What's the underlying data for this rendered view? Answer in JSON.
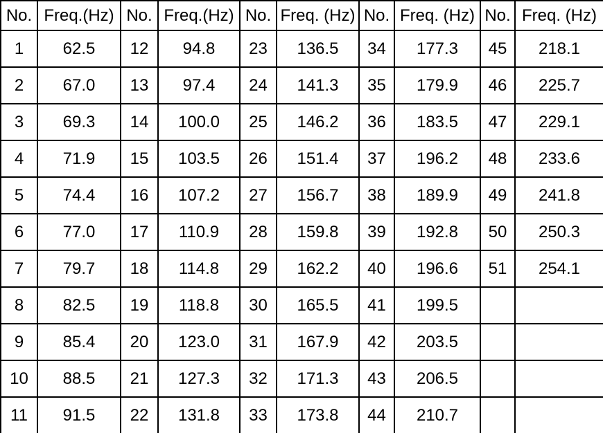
{
  "table": {
    "headers": [
      "No.",
      "Freq.(Hz)",
      "No.",
      "Freq.(Hz)",
      "No.",
      "Freq. (Hz)",
      "No.",
      "Freq. (Hz)",
      "No.",
      "Freq. (Hz)"
    ],
    "rows": [
      [
        "1",
        "62.5",
        "12",
        "94.8",
        "23",
        "136.5",
        "34",
        "177.3",
        "45",
        "218.1"
      ],
      [
        "2",
        "67.0",
        "13",
        "97.4",
        "24",
        "141.3",
        "35",
        "179.9",
        "46",
        "225.7"
      ],
      [
        "3",
        "69.3",
        "14",
        "100.0",
        "25",
        "146.2",
        "36",
        "183.5",
        "47",
        "229.1"
      ],
      [
        "4",
        "71.9",
        "15",
        "103.5",
        "26",
        "151.4",
        "37",
        "196.2",
        "48",
        "233.6"
      ],
      [
        "5",
        "74.4",
        "16",
        "107.2",
        "27",
        "156.7",
        "38",
        "189.9",
        "49",
        "241.8"
      ],
      [
        "6",
        "77.0",
        "17",
        "110.9",
        "28",
        "159.8",
        "39",
        "192.8",
        "50",
        "250.3"
      ],
      [
        "7",
        "79.7",
        "18",
        "114.8",
        "29",
        "162.2",
        "40",
        "196.6",
        "51",
        "254.1"
      ],
      [
        "8",
        "82.5",
        "19",
        "118.8",
        "30",
        "165.5",
        "41",
        "199.5",
        "",
        ""
      ],
      [
        "9",
        "85.4",
        "20",
        "123.0",
        "31",
        "167.9",
        "42",
        "203.5",
        "",
        ""
      ],
      [
        "10",
        "88.5",
        "21",
        "127.3",
        "32",
        "171.3",
        "43",
        "206.5",
        "",
        ""
      ],
      [
        "11",
        "91.5",
        "22",
        "131.8",
        "33",
        "173.8",
        "44",
        "210.7",
        "",
        ""
      ]
    ]
  },
  "colors": {
    "border": "#000000",
    "text": "#000000",
    "background": "#ffffff"
  }
}
